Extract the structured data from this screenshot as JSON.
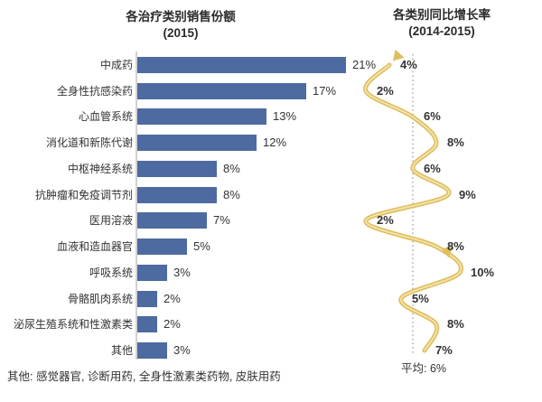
{
  "left_chart": {
    "title_line1": "各治疗类别销售份额",
    "title_line2": "(2015)",
    "footnote": "其他: 感觉器官, 诊断用药, 全身性激素类药物, 皮肤用药"
  },
  "right_chart": {
    "title_line1": "各类别同比增长率",
    "title_line2": "(2014-2015)",
    "average_label": "平均: 6%",
    "average_value": 6
  },
  "colors": {
    "bar": "#4d6ba0",
    "curve": "#dfbe5e",
    "curve_highlight": "#f3e4ae",
    "axis": "#b5b5b5",
    "dotted_line": "#9a9a9a",
    "text": "#333333"
  },
  "chart_data": [
    {
      "type": "bar",
      "orientation": "horizontal",
      "title": "各治疗类别销售份额 (2015)",
      "categories": [
        "中成药",
        "全身性抗感染药",
        "心血管系统",
        "消化道和新陈代谢",
        "中枢神经系统",
        "抗肿瘤和免疫调节剂",
        "医用溶液",
        "血液和造血器官",
        "呼吸系统",
        "骨骼肌肉系统",
        "泌尿生殖系统和性激素类",
        "其他"
      ],
      "values": [
        21,
        17,
        13,
        12,
        8,
        8,
        7,
        5,
        3,
        2,
        2,
        3
      ],
      "unit": "%",
      "xlim": [
        0,
        22
      ],
      "grid": false
    },
    {
      "type": "line",
      "title": "各类别同比增长率 (2014-2015)",
      "categories": [
        "中成药",
        "全身性抗感染药",
        "心血管系统",
        "消化道和新陈代谢",
        "中枢神经系统",
        "抗肿瘤和免疫调节剂",
        "医用溶液",
        "血液和造血器官",
        "呼吸系统",
        "骨骼肌肉系统",
        "泌尿生殖系统和性激素类",
        "其他"
      ],
      "values": [
        4,
        2,
        6,
        8,
        6,
        9,
        2,
        8,
        10,
        5,
        8,
        7
      ],
      "unit": "%",
      "reference_line": {
        "label": "平均: 6%",
        "value": 6,
        "style": "dotted"
      },
      "grid": false
    }
  ]
}
